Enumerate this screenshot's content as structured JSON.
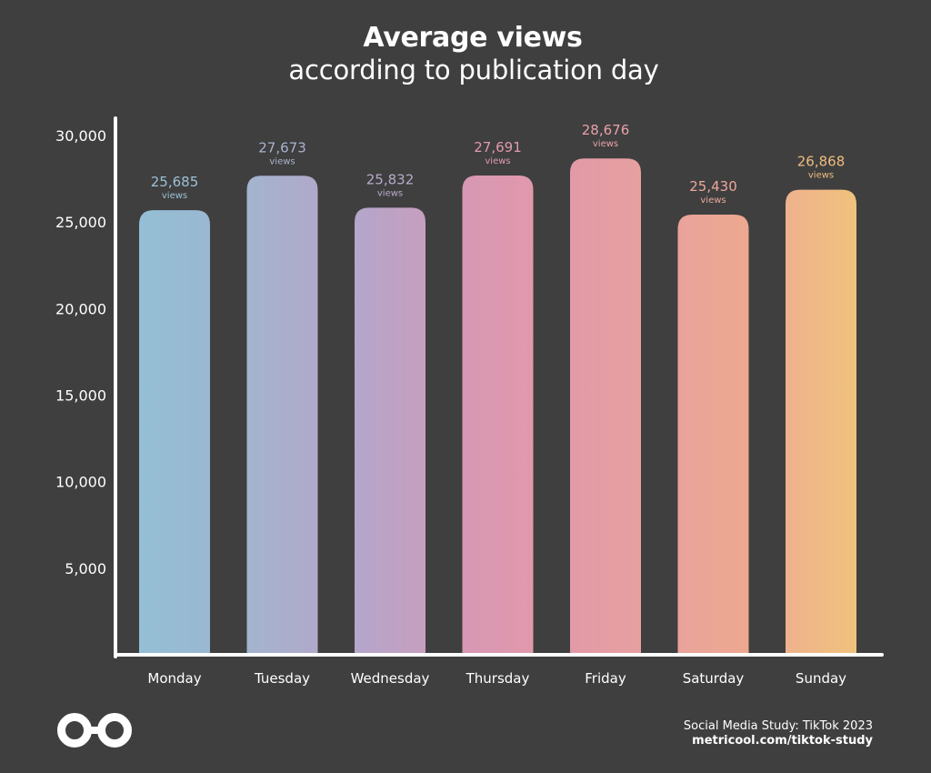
{
  "header": {
    "title": "Average views",
    "subtitle": "according to publication day"
  },
  "footer": {
    "source": "Social Media Study: TikTok 2023",
    "url": "metricool.com/tiktok-study",
    "logo_icon": "infinity-loop-icon"
  },
  "chart_data": {
    "type": "bar",
    "title": "Average views",
    "subtitle": "according to publication day",
    "xlabel": "",
    "ylabel": "",
    "ylim": [
      0,
      30000
    ],
    "yticks": [
      5000,
      10000,
      15000,
      20000,
      25000,
      30000
    ],
    "ytick_labels": [
      "5,000",
      "10,000",
      "15,000",
      "20,000",
      "25,000",
      "30,000"
    ],
    "grid": false,
    "categories": [
      "Monday",
      "Tuesday",
      "Wednesday",
      "Thursday",
      "Friday",
      "Saturday",
      "Sunday"
    ],
    "values": [
      25685,
      27673,
      25832,
      27691,
      28676,
      25430,
      26868
    ],
    "value_labels": [
      "25,685",
      "27,673",
      "25,832",
      "27,691",
      "28,676",
      "25,430",
      "26,868"
    ],
    "unit_label": "views",
    "bar_colors": [
      [
        "#94bfd6",
        "#9ab7d0"
      ],
      [
        "#a3b4cf",
        "#b0a9c9"
      ],
      [
        "#b4a6cb",
        "#c69fbf"
      ],
      [
        "#d797b4",
        "#e199ac"
      ],
      [
        "#e29aa7",
        "#e7a0a0"
      ],
      [
        "#e9a39b",
        "#eda88f"
      ],
      [
        "#efb28d",
        "#efc27c"
      ]
    ],
    "label_colors": [
      "#9cc0d6",
      "#a8b3cd",
      "#b9aacb",
      "#e09aaf",
      "#e7a1a8",
      "#eba89a",
      "#f0bd7f"
    ],
    "axis_color": "#ffffff",
    "background": "#3f3f3f"
  }
}
